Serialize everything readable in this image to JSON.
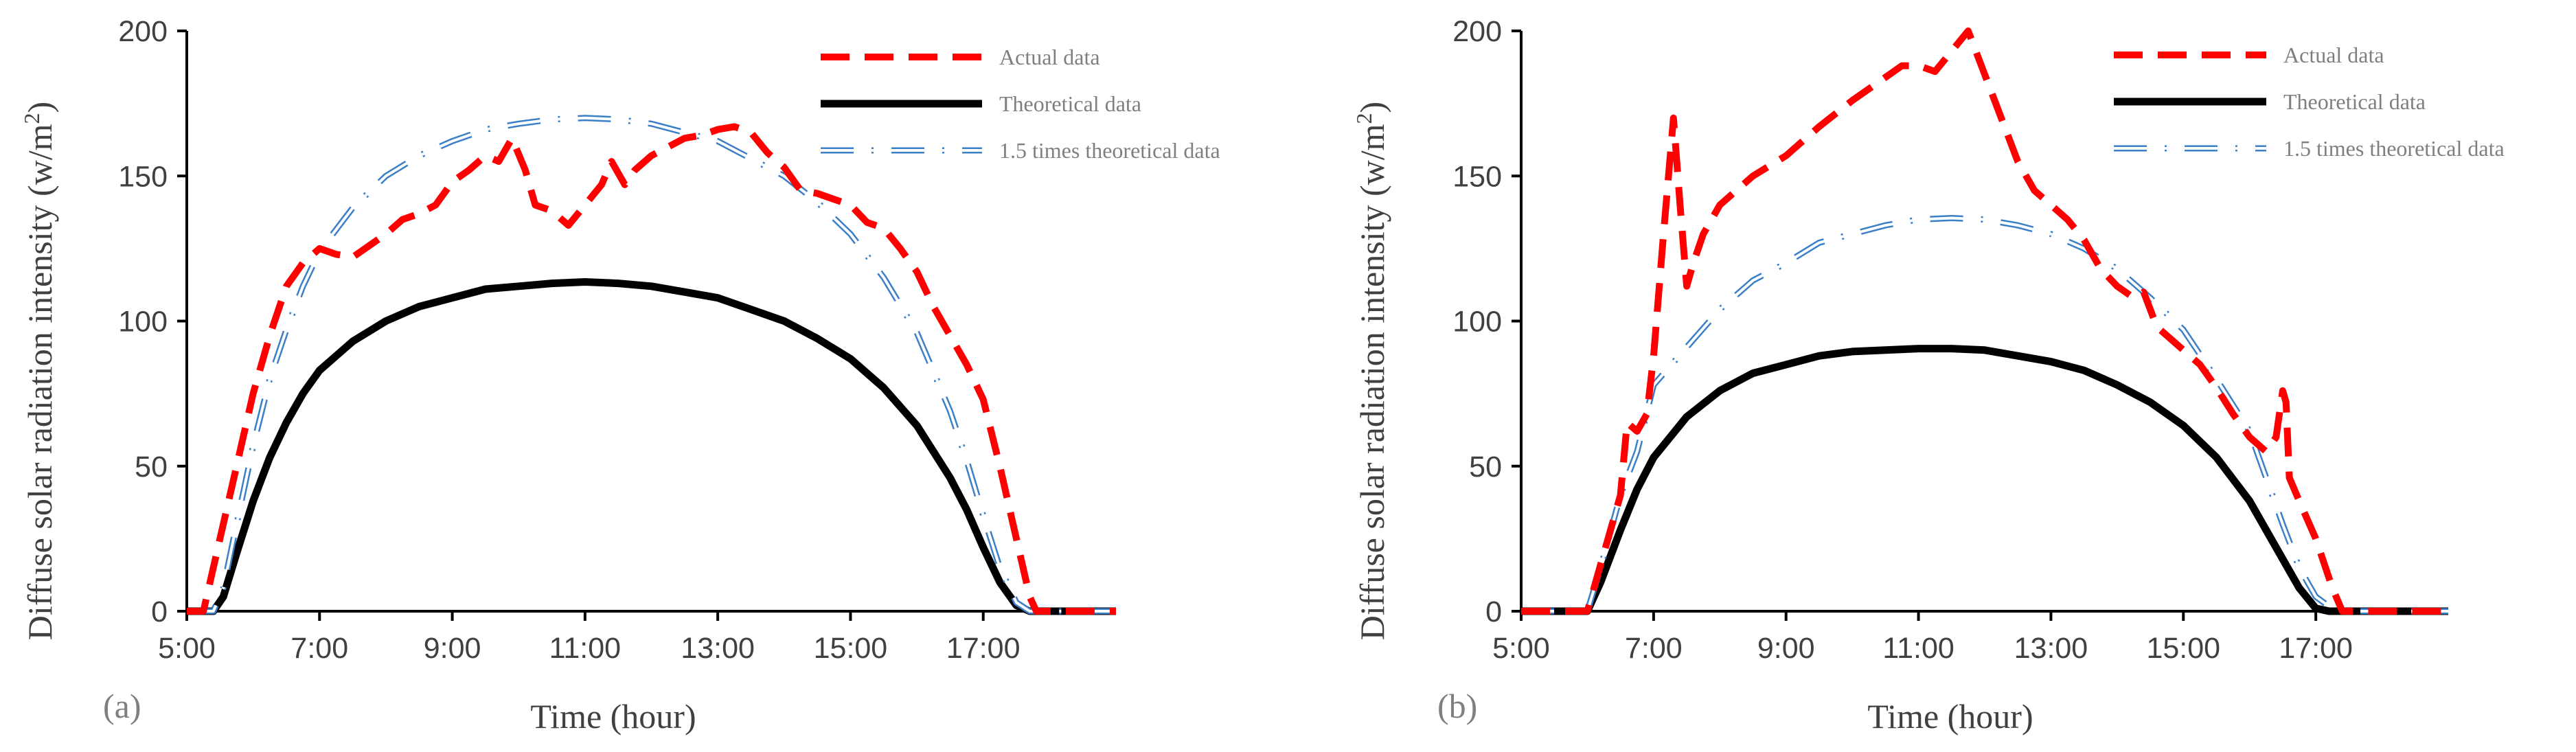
{
  "chart_data": [
    {
      "type": "line",
      "panel_label": "(a)",
      "xlabel": "Time (hour)",
      "ylabel_main": "Diffuse solar radiation intensity (w/m",
      "ylabel_sup": "2",
      "ylabel_end": ")",
      "xlim": [
        5,
        19
      ],
      "ylim": [
        0,
        200
      ],
      "xticks": [
        5,
        7,
        9,
        11,
        13,
        15,
        17
      ],
      "xtick_labels": [
        "5:00",
        "7:00",
        "9:00",
        "11:00",
        "13:00",
        "15:00",
        "17:00"
      ],
      "yticks": [
        0,
        50,
        100,
        150,
        200
      ],
      "ytick_labels": [
        "0",
        "50",
        "100",
        "150",
        "200"
      ],
      "legend": {
        "position": "top-right"
      },
      "series": [
        {
          "name": "Actual data",
          "color": "#ff0000",
          "style": "dashed",
          "points": [
            [
              5,
              0
            ],
            [
              5.25,
              0
            ],
            [
              5.5,
              25
            ],
            [
              5.75,
              50
            ],
            [
              6,
              75
            ],
            [
              6.25,
              95
            ],
            [
              6.5,
              112
            ],
            [
              6.75,
              120
            ],
            [
              7,
              125
            ],
            [
              7.25,
              123
            ],
            [
              7.5,
              122
            ],
            [
              7.75,
              126
            ],
            [
              8,
              130
            ],
            [
              8.25,
              135
            ],
            [
              8.5,
              137
            ],
            [
              8.75,
              140
            ],
            [
              9,
              148
            ],
            [
              9.25,
              152
            ],
            [
              9.5,
              157
            ],
            [
              9.7,
              155
            ],
            [
              9.9,
              163
            ],
            [
              10.1,
              152
            ],
            [
              10.25,
              140
            ],
            [
              10.5,
              138
            ],
            [
              10.75,
              133
            ],
            [
              11,
              140
            ],
            [
              11.25,
              147
            ],
            [
              11.4,
              155
            ],
            [
              11.6,
              147
            ],
            [
              11.75,
              152
            ],
            [
              12,
              157
            ],
            [
              12.25,
              160
            ],
            [
              12.5,
              163
            ],
            [
              12.75,
              164
            ],
            [
              13,
              166
            ],
            [
              13.25,
              167
            ],
            [
              13.5,
              165
            ],
            [
              13.75,
              158
            ],
            [
              14,
              153
            ],
            [
              14.25,
              145
            ],
            [
              14.5,
              144
            ],
            [
              14.75,
              142
            ],
            [
              15,
              140
            ],
            [
              15.25,
              134
            ],
            [
              15.5,
              132
            ],
            [
              15.75,
              125
            ],
            [
              16,
              117
            ],
            [
              16.25,
              105
            ],
            [
              16.5,
              95
            ],
            [
              16.75,
              85
            ],
            [
              17,
              73
            ],
            [
              17.25,
              50
            ],
            [
              17.5,
              25
            ],
            [
              17.7,
              5
            ],
            [
              17.8,
              0
            ],
            [
              19,
              0
            ]
          ]
        },
        {
          "name": "Theoretical data",
          "color": "#000000",
          "style": "solid",
          "points": [
            [
              5,
              0
            ],
            [
              5.4,
              0
            ],
            [
              5.55,
              5
            ],
            [
              5.75,
              20
            ],
            [
              6,
              38
            ],
            [
              6.25,
              53
            ],
            [
              6.5,
              65
            ],
            [
              6.75,
              75
            ],
            [
              7,
              83
            ],
            [
              7.5,
              93
            ],
            [
              8,
              100
            ],
            [
              8.5,
              105
            ],
            [
              9,
              108
            ],
            [
              9.5,
              111
            ],
            [
              10,
              112
            ],
            [
              10.5,
              113
            ],
            [
              11,
              113.5
            ],
            [
              11.5,
              113
            ],
            [
              12,
              112
            ],
            [
              12.5,
              110
            ],
            [
              13,
              108
            ],
            [
              13.5,
              104
            ],
            [
              14,
              100
            ],
            [
              14.5,
              94
            ],
            [
              15,
              87
            ],
            [
              15.5,
              77
            ],
            [
              16,
              64
            ],
            [
              16.5,
              46
            ],
            [
              16.75,
              35
            ],
            [
              17,
              22
            ],
            [
              17.25,
              10
            ],
            [
              17.5,
              2
            ],
            [
              17.7,
              0
            ],
            [
              19,
              0
            ]
          ]
        },
        {
          "name": "1.5 times theoretical data",
          "color": "#3b7fc7",
          "style": "dashdot",
          "points": [
            [
              5,
              0
            ],
            [
              5.4,
              0
            ],
            [
              5.55,
              8
            ],
            [
              5.75,
              30
            ],
            [
              6,
              57
            ],
            [
              6.25,
              80
            ],
            [
              6.5,
              97
            ],
            [
              6.75,
              112
            ],
            [
              7,
              124
            ],
            [
              7.5,
              139
            ],
            [
              8,
              150
            ],
            [
              8.5,
              157
            ],
            [
              9,
              162
            ],
            [
              9.5,
              166
            ],
            [
              10,
              168
            ],
            [
              10.5,
              169.5
            ],
            [
              11,
              170
            ],
            [
              11.5,
              169.5
            ],
            [
              12,
              168
            ],
            [
              12.5,
              165
            ],
            [
              13,
              162
            ],
            [
              13.5,
              156
            ],
            [
              14,
              150
            ],
            [
              14.5,
              141
            ],
            [
              15,
              130
            ],
            [
              15.5,
              115
            ],
            [
              16,
              96
            ],
            [
              16.5,
              69
            ],
            [
              16.75,
              52
            ],
            [
              17,
              33
            ],
            [
              17.25,
              15
            ],
            [
              17.5,
              3
            ],
            [
              17.7,
              0
            ],
            [
              19,
              0
            ]
          ]
        }
      ]
    },
    {
      "type": "line",
      "panel_label": "(b)",
      "xlabel": "Time (hour)",
      "ylabel_main": "Diffuse solar radiation intensity (w/m",
      "ylabel_sup": "2",
      "ylabel_end": ")",
      "xlim": [
        5,
        19
      ],
      "ylim": [
        0,
        200
      ],
      "xticks": [
        5,
        7,
        9,
        11,
        13,
        15,
        17
      ],
      "xtick_labels": [
        "5:00",
        "7:00",
        "9:00",
        "11:00",
        "13:00",
        "15:00",
        "17:00"
      ],
      "yticks": [
        0,
        50,
        100,
        150,
        200
      ],
      "ytick_labels": [
        "0",
        "50",
        "100",
        "150",
        "200"
      ],
      "legend": {
        "position": "top-right"
      },
      "series": [
        {
          "name": "Actual data",
          "color": "#ff0000",
          "style": "dashed",
          "points": [
            [
              5,
              0
            ],
            [
              6,
              0
            ],
            [
              6.25,
              20
            ],
            [
              6.5,
              40
            ],
            [
              6.6,
              65
            ],
            [
              6.75,
              62
            ],
            [
              6.9,
              68
            ],
            [
              7,
              88
            ],
            [
              7.15,
              130
            ],
            [
              7.3,
              170
            ],
            [
              7.4,
              140
            ],
            [
              7.5,
              112
            ],
            [
              7.6,
              120
            ],
            [
              7.75,
              130
            ],
            [
              8,
              140
            ],
            [
              8.5,
              150
            ],
            [
              9,
              157
            ],
            [
              9.5,
              167
            ],
            [
              10,
              176
            ],
            [
              10.5,
              184
            ],
            [
              10.75,
              188
            ],
            [
              11,
              188
            ],
            [
              11.25,
              186
            ],
            [
              11.5,
              193
            ],
            [
              11.75,
              200
            ],
            [
              12,
              185
            ],
            [
              12.25,
              170
            ],
            [
              12.5,
              155
            ],
            [
              12.75,
              145
            ],
            [
              13,
              140
            ],
            [
              13.25,
              135
            ],
            [
              13.5,
              128
            ],
            [
              13.75,
              118
            ],
            [
              14,
              112
            ],
            [
              14.25,
              108
            ],
            [
              14.4,
              110
            ],
            [
              14.6,
              98
            ],
            [
              14.75,
              95
            ],
            [
              15,
              90
            ],
            [
              15.25,
              85
            ],
            [
              15.5,
              77
            ],
            [
              15.75,
              68
            ],
            [
              16,
              60
            ],
            [
              16.25,
              55
            ],
            [
              16.4,
              60
            ],
            [
              16.5,
              76
            ],
            [
              16.55,
              72
            ],
            [
              16.6,
              46
            ],
            [
              16.75,
              38
            ],
            [
              17,
              25
            ],
            [
              17.25,
              8
            ],
            [
              17.4,
              0
            ],
            [
              19,
              0
            ]
          ]
        },
        {
          "name": "Theoretical data",
          "color": "#000000",
          "style": "solid",
          "points": [
            [
              5,
              0
            ],
            [
              6,
              0
            ],
            [
              6.2,
              10
            ],
            [
              6.5,
              28
            ],
            [
              6.75,
              42
            ],
            [
              7,
              53
            ],
            [
              7.5,
              67
            ],
            [
              8,
              76
            ],
            [
              8.5,
              82
            ],
            [
              9,
              85
            ],
            [
              9.5,
              88
            ],
            [
              10,
              89.5
            ],
            [
              10.5,
              90
            ],
            [
              11,
              90.5
            ],
            [
              11.5,
              90.5
            ],
            [
              12,
              90
            ],
            [
              12.5,
              88
            ],
            [
              13,
              86
            ],
            [
              13.5,
              83
            ],
            [
              14,
              78
            ],
            [
              14.5,
              72
            ],
            [
              15,
              64
            ],
            [
              15.5,
              53
            ],
            [
              16,
              38
            ],
            [
              16.5,
              18
            ],
            [
              16.75,
              8
            ],
            [
              17,
              1
            ],
            [
              17.2,
              0
            ],
            [
              19,
              0
            ]
          ]
        },
        {
          "name": "1.5 times theoretical data",
          "color": "#3b7fc7",
          "style": "dashdot",
          "points": [
            [
              5,
              0
            ],
            [
              6,
              0
            ],
            [
              6.2,
              15
            ],
            [
              6.5,
              40
            ],
            [
              6.75,
              55
            ],
            [
              7,
              78
            ],
            [
              7.5,
              91
            ],
            [
              8,
              104
            ],
            [
              8.5,
              114
            ],
            [
              9,
              120
            ],
            [
              9.5,
              127
            ],
            [
              10,
              130
            ],
            [
              10.5,
              133
            ],
            [
              11,
              135
            ],
            [
              11.5,
              135.5
            ],
            [
              12,
              135
            ],
            [
              12.5,
              133
            ],
            [
              13,
              130
            ],
            [
              13.5,
              125
            ],
            [
              14,
              118
            ],
            [
              14.5,
              108
            ],
            [
              15,
              97
            ],
            [
              15.5,
              80
            ],
            [
              16,
              62
            ],
            [
              16.5,
              30
            ],
            [
              16.75,
              15
            ],
            [
              17,
              5
            ],
            [
              17.3,
              0
            ],
            [
              19,
              0
            ]
          ]
        }
      ]
    }
  ]
}
